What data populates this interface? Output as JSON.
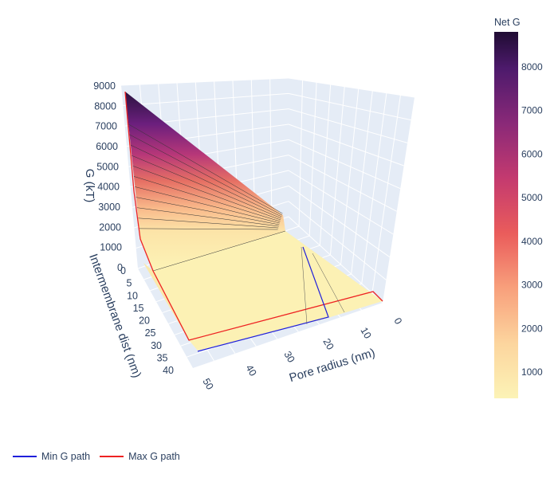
{
  "chart_data": {
    "type": "surface3d",
    "title": "",
    "zlabel": "G (kT)",
    "ylabel": "Intermembrane dist (nm)",
    "xlabel": "Pore radius (nm)",
    "z_ticks": [
      "0",
      "1000",
      "2000",
      "3000",
      "4000",
      "5000",
      "6000",
      "7000",
      "8000",
      "9000"
    ],
    "y_ticks": [
      "0",
      "5",
      "10",
      "15",
      "20",
      "25",
      "30",
      "35",
      "40"
    ],
    "x_ticks": [
      "10",
      "20",
      "30",
      "40",
      "50"
    ],
    "x_tick0": "0",
    "zlim": [
      0,
      9000
    ],
    "colorbar": {
      "title": "Net G",
      "ticks": [
        "1000",
        "2000",
        "3000",
        "4000",
        "5000",
        "6000",
        "7000",
        "8000"
      ],
      "colorscale": "magma-reversed",
      "range": [
        400,
        8800
      ]
    },
    "series": [
      {
        "name": "Min G path",
        "color": "#1f1fdb"
      },
      {
        "name": "Max G path",
        "color": "#ee2222"
      }
    ]
  }
}
